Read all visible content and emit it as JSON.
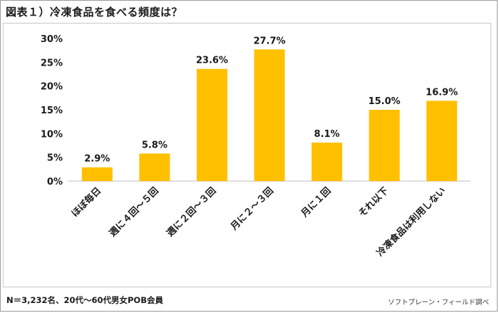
{
  "title": "図表１）冷凍食品を食べる頻度は？",
  "footnote": "N＝3,232名、20代～60代男女POB会員",
  "source": "ソフトブレーン・フィールド調べ",
  "colors": {
    "bar": "#FFC000",
    "axis": "#bfbfbf"
  },
  "chart_data": {
    "type": "bar",
    "title": "図表１）冷凍食品を食べる頻度は？",
    "xlabel": "",
    "ylabel": "",
    "ylim": [
      0,
      30
    ],
    "yticks": [
      "0%",
      "5%",
      "10%",
      "15%",
      "20%",
      "25%",
      "30%"
    ],
    "grid": false,
    "categories": [
      "ほぼ毎日",
      "週に４回～５回",
      "週に２回～３回",
      "月に２～３回",
      "月に１回",
      "それ以下",
      "冷凍食品は利用しない"
    ],
    "values": [
      2.9,
      5.8,
      23.6,
      27.7,
      8.1,
      15.0,
      16.9
    ],
    "data_labels": [
      "2.9%",
      "5.8%",
      "23.6%",
      "27.7%",
      "8.1%",
      "15.0%",
      "16.9%"
    ]
  }
}
